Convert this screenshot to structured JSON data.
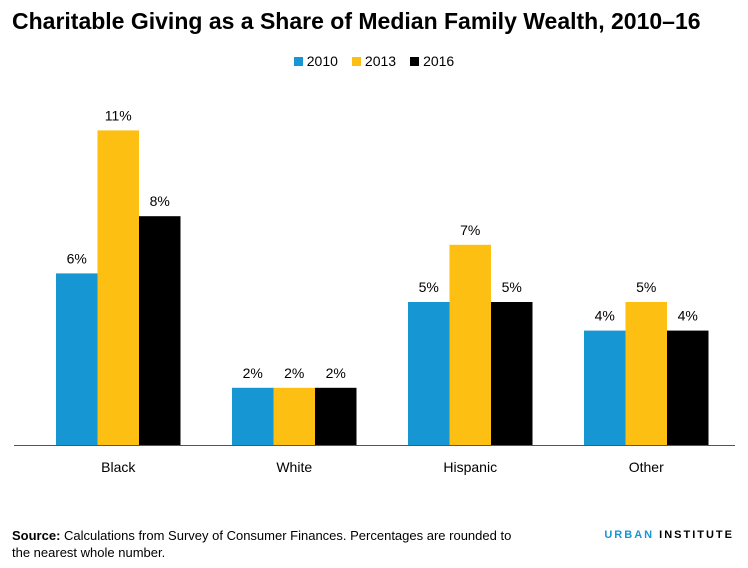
{
  "title": "Charitable Giving as a Share of Median Family Wealth, 2010–16",
  "chart_data": {
    "type": "bar",
    "categories": [
      "Black",
      "White",
      "Hispanic",
      "Other"
    ],
    "series": [
      {
        "name": "2010",
        "color": "#1696d2",
        "values": [
          6,
          2,
          5,
          4
        ],
        "labels": [
          "6%",
          "2%",
          "5%",
          "4%"
        ]
      },
      {
        "name": "2013",
        "color": "#fdbf11",
        "values": [
          11,
          2,
          7,
          5
        ],
        "labels": [
          "11%",
          "2%",
          "7%",
          "5%"
        ]
      },
      {
        "name": "2016",
        "color": "#000000",
        "values": [
          8,
          2,
          5,
          4
        ],
        "labels": [
          "8%",
          "2%",
          "5%",
          "4%"
        ]
      }
    ],
    "legend_position": "top-center",
    "grid": false,
    "ylim": [
      0,
      11
    ]
  },
  "footer": {
    "source_label": "Source:",
    "source_text": " Calculations from Survey of Consumer Finances.  Percentages are rounded to the nearest whole number."
  },
  "brand": {
    "urban": "URBAN",
    "institute": "INSTITUTE"
  }
}
